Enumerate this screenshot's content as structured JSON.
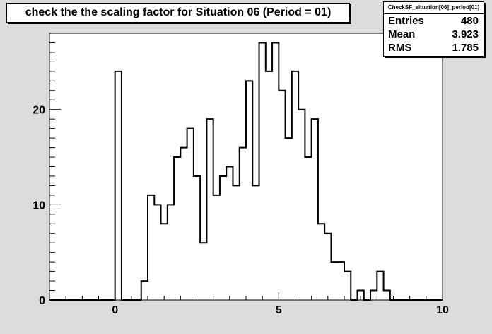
{
  "title": "check the the scaling factor for Situation 06 (Period = 01)",
  "stats": {
    "name": "CheckSF_situation[06]_period[01]",
    "rows": [
      {
        "label": "Entries",
        "value": "480"
      },
      {
        "label": "Mean",
        "value": "3.923"
      },
      {
        "label": "RMS",
        "value": "1.785"
      }
    ]
  },
  "chart_data": {
    "type": "bar",
    "histogram": true,
    "title": "check the the scaling factor for Situation 06 (Period = 01)",
    "xlabel": "",
    "ylabel": "",
    "xlim": [
      -2,
      10
    ],
    "ylim": [
      0,
      28
    ],
    "bin_width": 0.2,
    "grid": false,
    "x_ticks": [
      "0",
      "5",
      "10"
    ],
    "y_ticks": [
      "0",
      "10",
      "20"
    ],
    "x_tick_values": [
      0,
      5,
      10
    ],
    "y_tick_values": [
      0,
      10,
      20
    ],
    "bins": [
      {
        "x": -2.0,
        "v": 0
      },
      {
        "x": -1.8,
        "v": 0
      },
      {
        "x": -1.6,
        "v": 0
      },
      {
        "x": -1.4,
        "v": 0
      },
      {
        "x": -1.2,
        "v": 0
      },
      {
        "x": -1.0,
        "v": 0
      },
      {
        "x": -0.8,
        "v": 0
      },
      {
        "x": -0.6,
        "v": 0
      },
      {
        "x": -0.4,
        "v": 0
      },
      {
        "x": -0.2,
        "v": 0
      },
      {
        "x": 0.0,
        "v": 24
      },
      {
        "x": 0.2,
        "v": 0
      },
      {
        "x": 0.4,
        "v": 0
      },
      {
        "x": 0.6,
        "v": 0
      },
      {
        "x": 0.8,
        "v": 2
      },
      {
        "x": 1.0,
        "v": 11
      },
      {
        "x": 1.2,
        "v": 10
      },
      {
        "x": 1.4,
        "v": 8
      },
      {
        "x": 1.6,
        "v": 10
      },
      {
        "x": 1.8,
        "v": 15
      },
      {
        "x": 2.0,
        "v": 16
      },
      {
        "x": 2.2,
        "v": 18
      },
      {
        "x": 2.4,
        "v": 13
      },
      {
        "x": 2.6,
        "v": 6
      },
      {
        "x": 2.8,
        "v": 19
      },
      {
        "x": 3.0,
        "v": 11
      },
      {
        "x": 3.2,
        "v": 13
      },
      {
        "x": 3.4,
        "v": 14
      },
      {
        "x": 3.6,
        "v": 12
      },
      {
        "x": 3.8,
        "v": 16
      },
      {
        "x": 4.0,
        "v": 23
      },
      {
        "x": 4.2,
        "v": 12
      },
      {
        "x": 4.4,
        "v": 27
      },
      {
        "x": 4.6,
        "v": 24
      },
      {
        "x": 4.8,
        "v": 27
      },
      {
        "x": 5.0,
        "v": 22
      },
      {
        "x": 5.2,
        "v": 17
      },
      {
        "x": 5.4,
        "v": 24
      },
      {
        "x": 5.6,
        "v": 20
      },
      {
        "x": 5.8,
        "v": 15
      },
      {
        "x": 6.0,
        "v": 19
      },
      {
        "x": 6.2,
        "v": 8
      },
      {
        "x": 6.4,
        "v": 7
      },
      {
        "x": 6.6,
        "v": 4
      },
      {
        "x": 6.8,
        "v": 4
      },
      {
        "x": 7.0,
        "v": 3
      },
      {
        "x": 7.2,
        "v": 0
      },
      {
        "x": 7.4,
        "v": 1
      },
      {
        "x": 7.6,
        "v": 0
      },
      {
        "x": 7.8,
        "v": 1
      },
      {
        "x": 8.0,
        "v": 3
      },
      {
        "x": 8.2,
        "v": 1
      },
      {
        "x": 8.4,
        "v": 0
      },
      {
        "x": 8.6,
        "v": 0
      },
      {
        "x": 8.8,
        "v": 0
      },
      {
        "x": 9.0,
        "v": 0
      },
      {
        "x": 9.2,
        "v": 0
      },
      {
        "x": 9.4,
        "v": 0
      },
      {
        "x": 9.6,
        "v": 0
      },
      {
        "x": 9.8,
        "v": 0
      }
    ]
  }
}
